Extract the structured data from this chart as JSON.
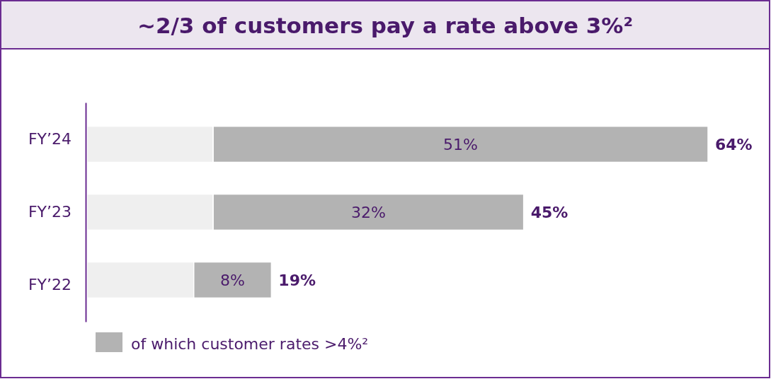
{
  "chart_data": {
    "type": "bar",
    "title": "~2/3 of customers pay a rate above 3%²",
    "orientation": "horizontal",
    "stacked": true,
    "categories": [
      "FY’24",
      "FY’23",
      "FY’22"
    ],
    "series": [
      {
        "color": "#efefef",
        "values": [
          13,
          13,
          11
        ]
      },
      {
        "name": "of which customer rates >4%²",
        "color": "#b3b3b3",
        "values": [
          51,
          32,
          8
        ],
        "value_labels": [
          "51%",
          "32%",
          "8%"
        ]
      }
    ],
    "totals": [
      "64%",
      "45%",
      "19%"
    ],
    "tick_labels": "y",
    "legend": "bottom left"
  }
}
